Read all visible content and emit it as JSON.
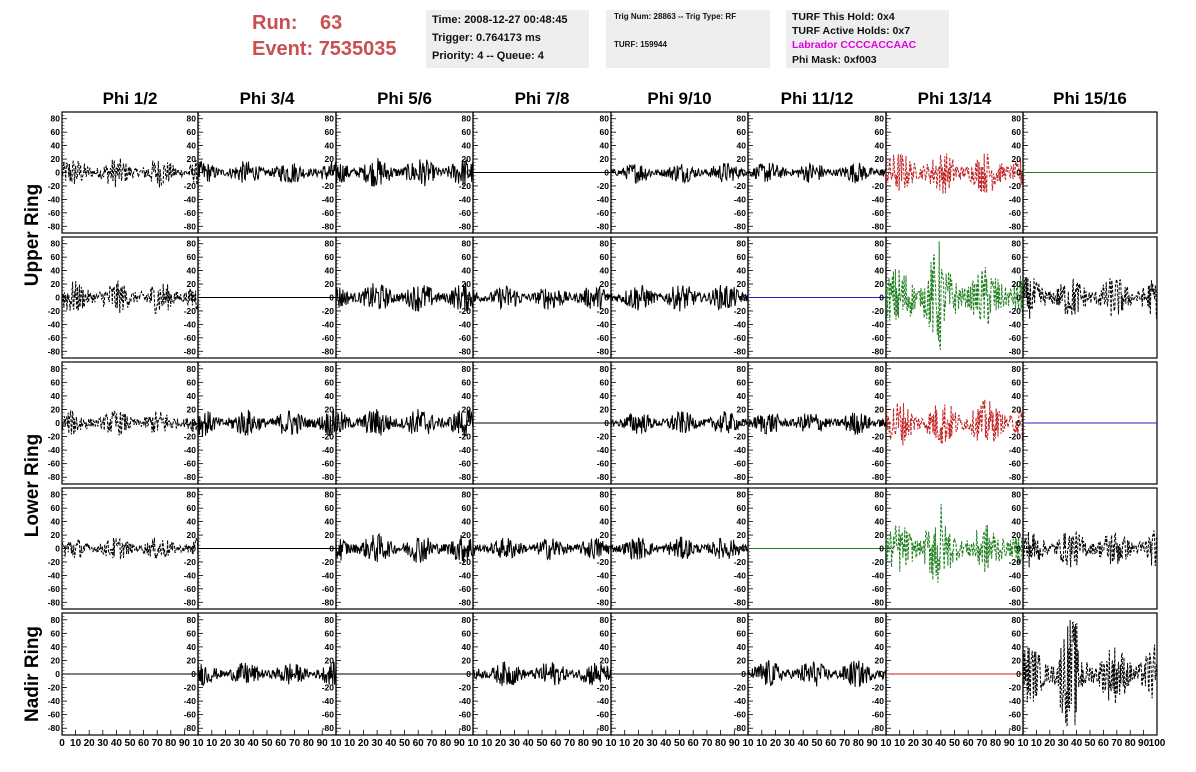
{
  "header": {
    "run_label": "Run:",
    "run_value": "63",
    "event_label": "Event:",
    "event_value": "7535035"
  },
  "info_time": {
    "time": "Time: 2008-12-27 00:48:45",
    "trigger": "Trigger: 0.764173 ms",
    "priority": "Priority: 4 -- Queue: 4"
  },
  "info_trig": {
    "trig": "Trig Num: 28863 -- Trig Type: RF",
    "turf": "TURF: 159944"
  },
  "info_turf": {
    "this_hold": "TURF This Hold: 0x4",
    "active_holds": "TURF Active Holds: 0x7",
    "labrador": "Labrador CCCCACCAAC",
    "phi_mask": "Phi Mask: 0xf003"
  },
  "colors": {
    "run_text": "#c85050",
    "labrador_text": "#e000e0",
    "trace_black": "#000000",
    "trace_red": "#c02020",
    "trace_green": "#208020",
    "trace_blue": "#2020c0",
    "box_bg": "#eeeeee"
  },
  "chart_data": {
    "type": "line",
    "columns": [
      "Phi 1/2",
      "Phi 3/4",
      "Phi 5/6",
      "Phi 7/8",
      "Phi 9/10",
      "Phi 11/12",
      "Phi 13/14",
      "Phi 15/16"
    ],
    "ring_labels": [
      {
        "label": "Upper Ring",
        "rows": [
          0,
          1
        ]
      },
      {
        "label": "Lower Ring",
        "rows": [
          2,
          3
        ]
      },
      {
        "label": "Nadir Ring",
        "rows": [
          4
        ]
      }
    ],
    "ylim": [
      -90,
      90
    ],
    "y_ticks": [
      80,
      60,
      40,
      20,
      0,
      -20,
      -40,
      -60,
      -80
    ],
    "xlim": [
      0,
      100
    ],
    "x_ticks": [
      0,
      10,
      20,
      30,
      40,
      50,
      60,
      70,
      80,
      90,
      100
    ],
    "x_tick_labels": {
      "first": [
        "0",
        "10",
        "20",
        "30",
        "40",
        "50",
        "60",
        "70",
        "80",
        "90",
        "10"
      ],
      "middle": [
        "10",
        "20",
        "30",
        "40",
        "50",
        "60",
        "70",
        "80",
        "90",
        "10"
      ],
      "last": [
        "10",
        "20",
        "30",
        "40",
        "50",
        "60",
        "70",
        "80",
        "90",
        "100"
      ]
    },
    "panels": [
      [
        {
          "style": "dashed",
          "color": "black",
          "amp": 14
        },
        {
          "style": "solid",
          "color": "black",
          "amp": 11
        },
        {
          "style": "solid",
          "color": "black",
          "amp": 14
        },
        {
          "style": "flat",
          "color": "black",
          "amp": 0
        },
        {
          "style": "solid",
          "color": "black",
          "amp": 10
        },
        {
          "style": "solid",
          "color": "black",
          "amp": 10
        },
        {
          "style": "dashed",
          "color": "red",
          "amp": 20
        },
        {
          "style": "flat",
          "color": "green",
          "amp": 0
        }
      ],
      [
        {
          "style": "dashed",
          "color": "black",
          "amp": 16
        },
        {
          "style": "flat",
          "color": "black",
          "amp": 0
        },
        {
          "style": "solid",
          "color": "black",
          "amp": 14
        },
        {
          "style": "solid",
          "color": "black",
          "amp": 12
        },
        {
          "style": "solid",
          "color": "black",
          "amp": 13
        },
        {
          "style": "flat",
          "color": "blue",
          "amp": 0
        },
        {
          "style": "dashed",
          "color": "green",
          "amp": 30
        },
        {
          "style": "dashed",
          "color": "black",
          "amp": 20
        }
      ],
      [
        {
          "style": "dashed",
          "color": "black",
          "amp": 12
        },
        {
          "style": "solid",
          "color": "black",
          "amp": 13
        },
        {
          "style": "solid",
          "color": "black",
          "amp": 14
        },
        {
          "style": "flat",
          "color": "black",
          "amp": 0
        },
        {
          "style": "solid",
          "color": "black",
          "amp": 11
        },
        {
          "style": "solid",
          "color": "black",
          "amp": 11
        },
        {
          "style": "dashed",
          "color": "red",
          "amp": 22
        },
        {
          "style": "flat",
          "color": "blue",
          "amp": 0
        }
      ],
      [
        {
          "style": "dashed",
          "color": "black",
          "amp": 11
        },
        {
          "style": "flat",
          "color": "black",
          "amp": 0
        },
        {
          "style": "solid",
          "color": "black",
          "amp": 14
        },
        {
          "style": "solid",
          "color": "black",
          "amp": 11
        },
        {
          "style": "solid",
          "color": "black",
          "amp": 11
        },
        {
          "style": "flat",
          "color": "green",
          "amp": 0
        },
        {
          "style": "dashed",
          "color": "green",
          "amp": 24
        },
        {
          "style": "dashed",
          "color": "black",
          "amp": 18
        }
      ],
      [
        {
          "style": "flat",
          "color": "black",
          "amp": 0
        },
        {
          "style": "solid",
          "color": "black",
          "amp": 11
        },
        {
          "style": "flat",
          "color": "black",
          "amp": 0
        },
        {
          "style": "solid",
          "color": "black",
          "amp": 12
        },
        {
          "style": "flat",
          "color": "black",
          "amp": 0
        },
        {
          "style": "solid",
          "color": "black",
          "amp": 13
        },
        {
          "style": "flat",
          "color": "red",
          "amp": 0
        },
        {
          "style": "dashed",
          "color": "black",
          "amp": 28
        }
      ]
    ]
  }
}
